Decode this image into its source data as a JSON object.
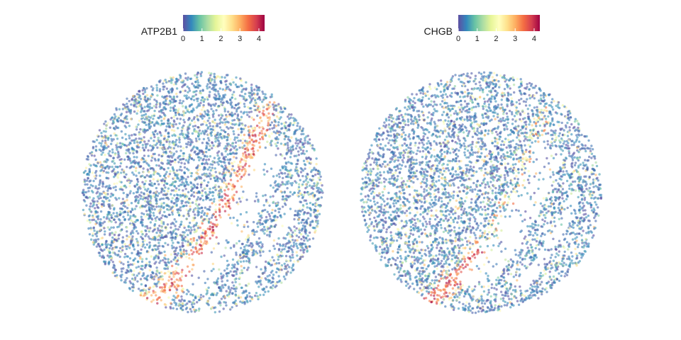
{
  "chart_data": [
    {
      "type": "scatter",
      "gene": "ATP2B1",
      "legend": {
        "title": "ATP2B1",
        "ticks": [
          "0",
          "1",
          "2",
          "3",
          "4"
        ],
        "range": [
          0,
          4.3
        ],
        "placement": "top"
      },
      "colorscale": [
        "#5E4FA2",
        "#3288BD",
        "#66C2A5",
        "#ABDDA4",
        "#E6F598",
        "#FFFFBF",
        "#FEE08B",
        "#FDAE61",
        "#F46D43",
        "#D53E4F",
        "#9E0142"
      ],
      "point_alpha": 0.6,
      "expression_pattern": {
        "background_level": 0.3,
        "high_band": "outer curved band around inner hollow region",
        "high_level": 4.0
      }
    },
    {
      "type": "scatter",
      "gene": "CHGB",
      "legend": {
        "title": "CHGB",
        "ticks": [
          "0",
          "1",
          "2",
          "3",
          "4"
        ],
        "range": [
          0,
          4.3
        ],
        "placement": "top"
      },
      "colorscale": [
        "#5E4FA2",
        "#3288BD",
        "#66C2A5",
        "#ABDDA4",
        "#E6F598",
        "#FFFFBF",
        "#FEE08B",
        "#FDAE61",
        "#F46D43",
        "#D53E4F",
        "#9E0142"
      ],
      "point_alpha": 0.6,
      "expression_pattern": {
        "background_level": 0.3,
        "high_band": "lower-left arc of the curved band",
        "high_level": 4.2
      }
    }
  ]
}
